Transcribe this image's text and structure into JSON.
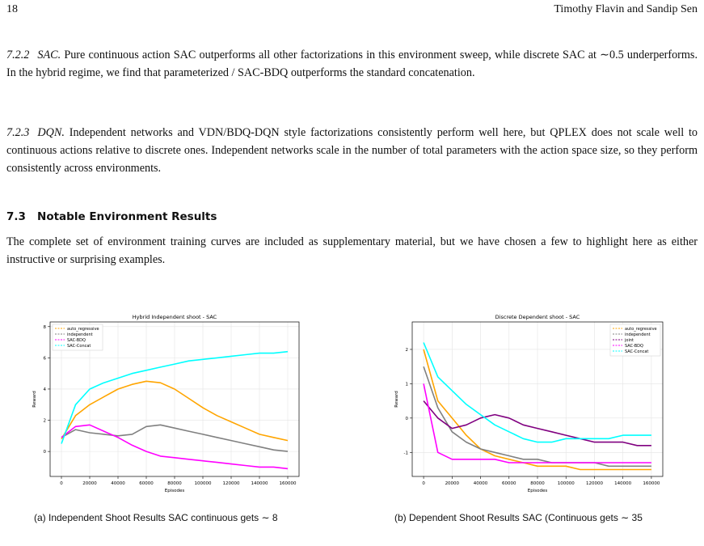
{
  "header": {
    "page_number": "18",
    "authors": "Timothy Flavin and Sandip Sen"
  },
  "paragraphs": [
    {
      "number": "7.2.2",
      "title": "SAC.",
      "text": "Pure continuous action SAC outperforms all other factorizations in this environment sweep, while discrete SAC at ∼0.5 underperforms. In the hybrid regime, we find that parameterized / SAC-BDQ outperforms the standard concatenation."
    },
    {
      "number": "7.2.3",
      "title": "DQN.",
      "text": "Independent networks and VDN/BDQ-DQN style factorizations consistently perform well here, but QPLEX does not scale well to continuous actions relative to discrete ones. Independent networks scale in the number of total parameters with the action space size, so they perform consistently across environments."
    }
  ],
  "section": {
    "number": "7.3",
    "title": "Notable Environment Results",
    "text": "The complete set of environment training curves are included as supplementary material, but we have chosen a few to highlight here as either instructive or surprising examples."
  },
  "figures": [
    {
      "caption": "(a) Independent Shoot Results SAC continuous gets ∼ 8",
      "chart": {
        "type": "line",
        "title": "Hybrid Independent shoot - SAC",
        "xlabel": "Episodes",
        "ylabel": "Reward",
        "x": [
          0,
          10000,
          20000,
          30000,
          40000,
          50000,
          60000,
          70000,
          80000,
          90000,
          100000,
          110000,
          120000,
          130000,
          140000,
          150000,
          160000
        ],
        "series": [
          {
            "name": "auto_regressive",
            "color": "#ffa500",
            "values": [
              0.8,
              2.3,
              3.0,
              3.5,
              4.0,
              4.3,
              4.5,
              4.4,
              4.0,
              3.4,
              2.8,
              2.3,
              1.9,
              1.5,
              1.1,
              0.9,
              0.7
            ]
          },
          {
            "name": "independent",
            "color": "#808080",
            "values": [
              0.9,
              1.4,
              1.2,
              1.1,
              1.0,
              1.1,
              1.6,
              1.7,
              1.5,
              1.3,
              1.1,
              0.9,
              0.7,
              0.5,
              0.3,
              0.1,
              0.0
            ]
          },
          {
            "name": "SAC-BDQ",
            "color": "#ff00ff",
            "values": [
              0.9,
              1.6,
              1.7,
              1.3,
              0.9,
              0.4,
              0.0,
              -0.3,
              -0.4,
              -0.5,
              -0.6,
              -0.7,
              -0.8,
              -0.9,
              -1.0,
              -1.0,
              -1.1
            ]
          },
          {
            "name": "SAC-Concat",
            "color": "#00ffff",
            "values": [
              0.5,
              3.0,
              4.0,
              4.4,
              4.7,
              5.0,
              5.2,
              5.4,
              5.6,
              5.8,
              5.9,
              6.0,
              6.1,
              6.2,
              6.3,
              6.3,
              6.4
            ]
          }
        ],
        "xlim": [
          -8000,
          168000
        ],
        "ylim": [
          -1.6,
          8.3
        ],
        "xticks": [
          0,
          20000,
          40000,
          60000,
          80000,
          100000,
          120000,
          140000,
          160000
        ],
        "yticks": [
          0,
          2,
          4,
          6,
          8
        ],
        "grid": true,
        "legend": "upper-left"
      }
    },
    {
      "caption": "(b) Dependent Shoot Results SAC (Continuous gets ∼ 35",
      "chart": {
        "type": "line",
        "title": "Discrete Dependent shoot - SAC",
        "xlabel": "Episodes",
        "ylabel": "Reward",
        "x": [
          0,
          10000,
          20000,
          30000,
          40000,
          50000,
          60000,
          70000,
          80000,
          90000,
          100000,
          110000,
          120000,
          130000,
          140000,
          150000,
          160000
        ],
        "series": [
          {
            "name": "auto_regressive",
            "color": "#ffa500",
            "values": [
              2.0,
              0.5,
              0.0,
              -0.5,
              -0.9,
              -1.1,
              -1.2,
              -1.3,
              -1.4,
              -1.4,
              -1.4,
              -1.5,
              -1.5,
              -1.5,
              -1.5,
              -1.5,
              -1.5
            ]
          },
          {
            "name": "independent",
            "color": "#808080",
            "values": [
              1.5,
              0.3,
              -0.4,
              -0.7,
              -0.9,
              -1.0,
              -1.1,
              -1.2,
              -1.2,
              -1.3,
              -1.3,
              -1.3,
              -1.3,
              -1.4,
              -1.4,
              -1.4,
              -1.4
            ]
          },
          {
            "name": "joint",
            "color": "#800080",
            "values": [
              0.5,
              0.0,
              -0.3,
              -0.2,
              0.0,
              0.1,
              0.0,
              -0.2,
              -0.3,
              -0.4,
              -0.5,
              -0.6,
              -0.7,
              -0.7,
              -0.7,
              -0.8,
              -0.8
            ]
          },
          {
            "name": "SAC-BDQ",
            "color": "#ff00ff",
            "values": [
              1.0,
              -1.0,
              -1.2,
              -1.2,
              -1.2,
              -1.2,
              -1.3,
              -1.3,
              -1.3,
              -1.3,
              -1.3,
              -1.3,
              -1.3,
              -1.3,
              -1.3,
              -1.3,
              -1.3
            ]
          },
          {
            "name": "SAC-Concat",
            "color": "#00ffff",
            "values": [
              2.2,
              1.2,
              0.8,
              0.4,
              0.1,
              -0.2,
              -0.4,
              -0.6,
              -0.7,
              -0.7,
              -0.6,
              -0.6,
              -0.6,
              -0.6,
              -0.5,
              -0.5,
              -0.5
            ]
          }
        ],
        "xlim": [
          -8000,
          168000
        ],
        "ylim": [
          -1.7,
          2.8
        ],
        "xticks": [
          0,
          20000,
          40000,
          60000,
          80000,
          100000,
          120000,
          140000,
          160000
        ],
        "yticks": [
          -1,
          0,
          1,
          2
        ],
        "grid": true,
        "legend": "upper-right"
      }
    }
  ]
}
